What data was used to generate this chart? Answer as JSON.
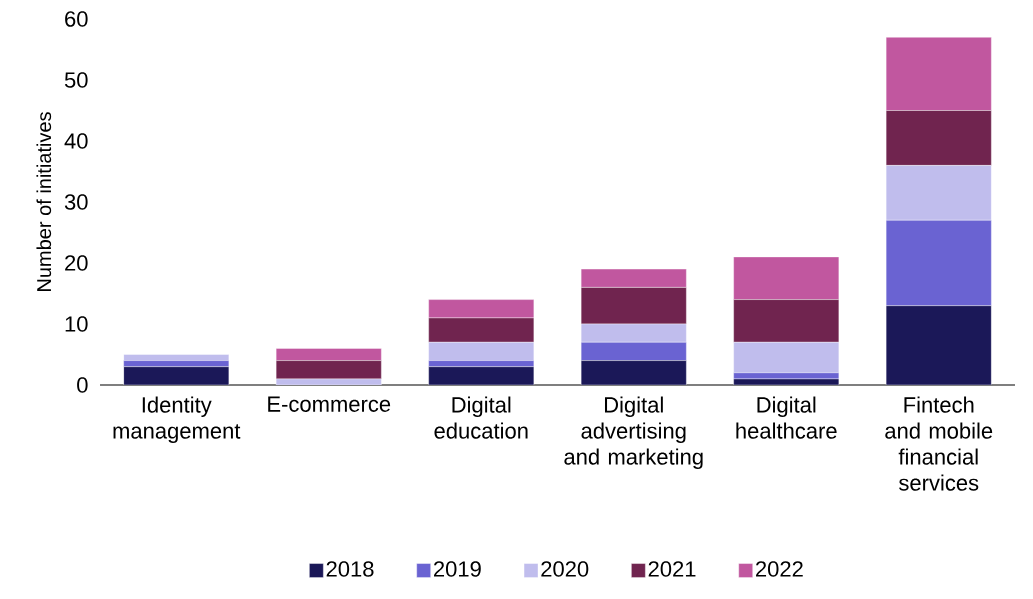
{
  "chart_data": {
    "type": "bar",
    "stacked": true,
    "ylabel": "Number of initiatives",
    "categories": [
      "Identity management",
      "E-commerce",
      "Digital education",
      "Digital advertising and marketing",
      "Digital healthcare",
      "Fintech and mobile financial services"
    ],
    "series": [
      {
        "name": "2018",
        "color": "#1b1858",
        "values": [
          3,
          0,
          3,
          4,
          1,
          13
        ]
      },
      {
        "name": "2019",
        "color": "#6a63d2",
        "values": [
          1,
          0,
          1,
          3,
          1,
          14
        ]
      },
      {
        "name": "2020",
        "color": "#c0bded",
        "values": [
          1,
          1,
          3,
          3,
          5,
          9
        ]
      },
      {
        "name": "2021",
        "color": "#70244f",
        "values": [
          0,
          3,
          4,
          6,
          7,
          9
        ]
      },
      {
        "name": "2022",
        "color": "#c1579f",
        "values": [
          0,
          2,
          3,
          3,
          7,
          12
        ]
      }
    ],
    "ylim": [
      0,
      60
    ],
    "yticks": [
      0,
      10,
      20,
      30,
      40,
      50,
      60
    ],
    "legend": "bottom"
  }
}
